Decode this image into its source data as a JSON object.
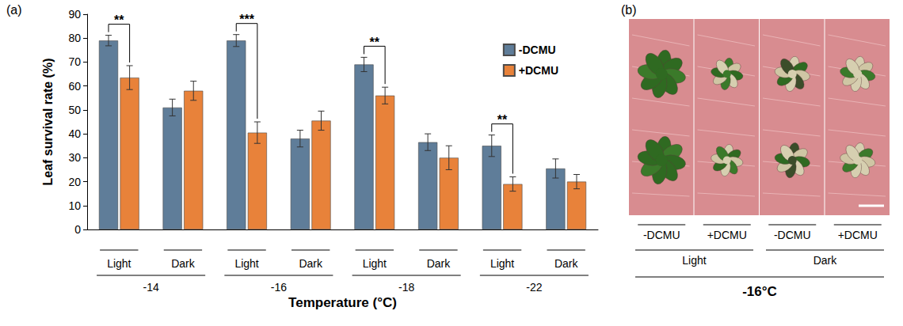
{
  "chart_data": {
    "type": "bar",
    "panel": "(a)",
    "ylabel": "Leaf survival rate (%)",
    "xlabel": "Temperature (°C)",
    "categories": [
      "Light",
      "Dark",
      "Light",
      "Dark",
      "Light",
      "Dark",
      "Light",
      "Dark"
    ],
    "category_groups": [
      "-14",
      "-14",
      "-16",
      "-16",
      "-18",
      "-18",
      "-22",
      "-22"
    ],
    "series": [
      {
        "name": "-DCMU",
        "color": "#5f7d99",
        "values": [
          79,
          51,
          79,
          38,
          69,
          36.5,
          35,
          25.5
        ],
        "errors": [
          2.2,
          3.5,
          2.5,
          3.5,
          3,
          3.5,
          4.5,
          4
        ]
      },
      {
        "name": "+DCMU",
        "color": "#e8823a",
        "values": [
          63.5,
          58,
          40.5,
          45.5,
          56,
          30,
          19,
          20
        ],
        "errors": [
          5,
          4,
          4.5,
          4,
          3.5,
          5,
          3,
          3
        ]
      }
    ],
    "ylim": [
      0,
      90
    ],
    "yticks": [
      0,
      10,
      20,
      30,
      40,
      50,
      60,
      70,
      80,
      90
    ],
    "grid": false,
    "legend": "upper right",
    "significance": [
      {
        "group": "-14",
        "category": "Light",
        "label": "**"
      },
      {
        "group": "-16",
        "category": "Light",
        "label": "***"
      },
      {
        "group": "-18",
        "category": "Light",
        "label": "**"
      },
      {
        "group": "-22",
        "category": "Light",
        "label": "**"
      }
    ]
  },
  "photo_panel": {
    "panel": "(b)",
    "treatments": [
      "-DCMU",
      "+DCMU",
      "-DCMU",
      "+DCMU"
    ],
    "conditions": [
      "Light",
      "Dark"
    ],
    "temperature": "-16°C"
  }
}
